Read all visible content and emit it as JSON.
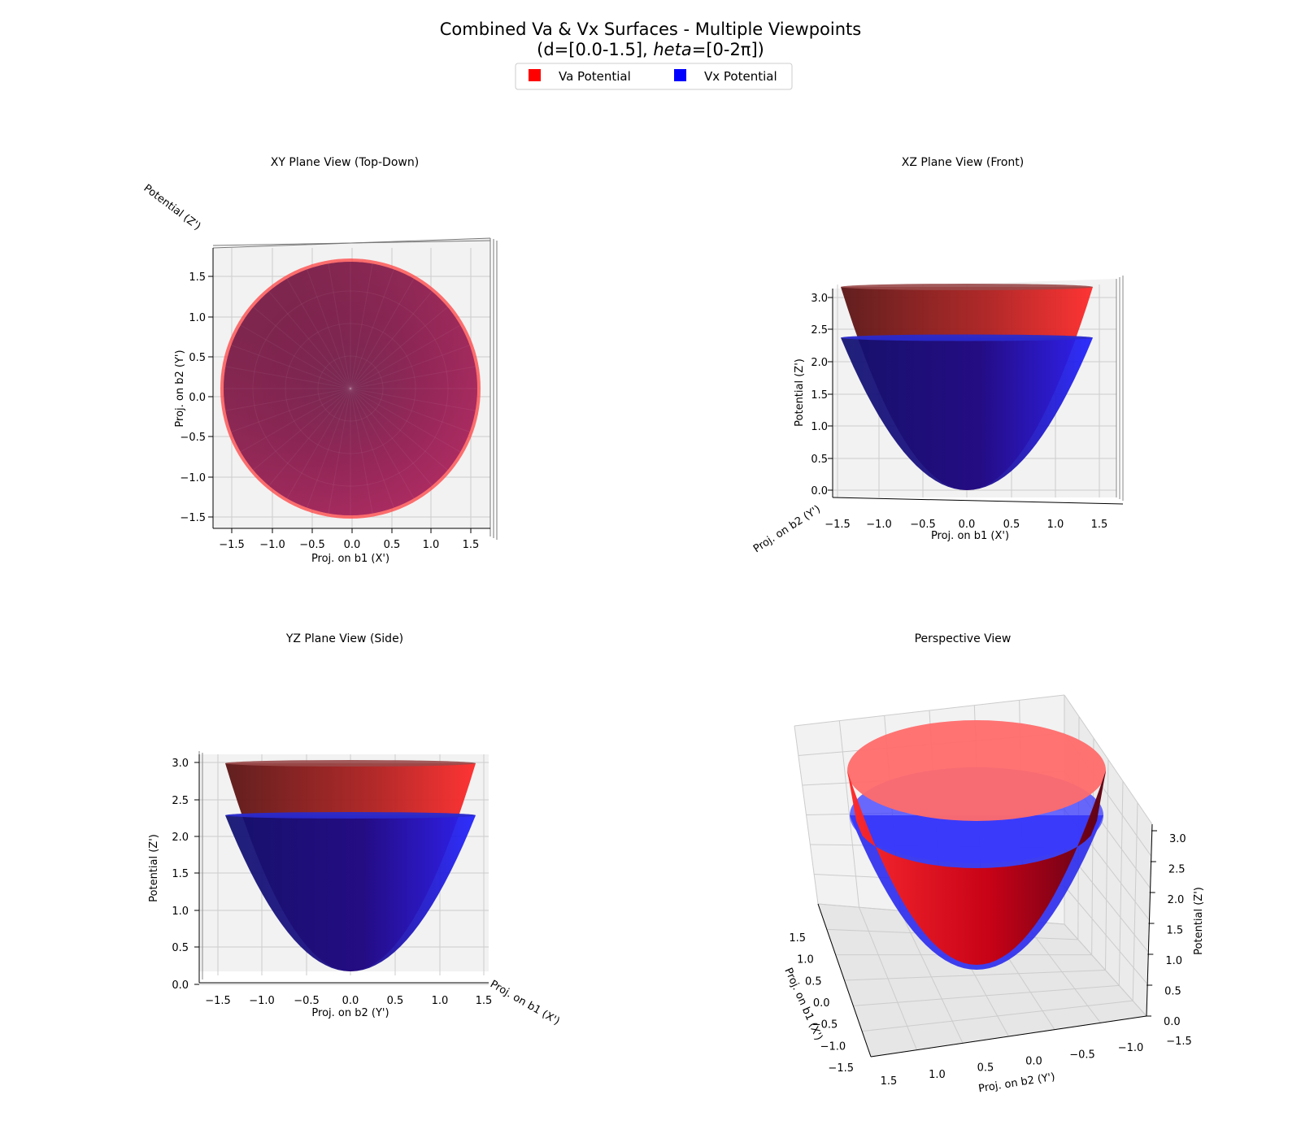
{
  "figure": {
    "title_line1": "Combined Va & Vx Surfaces - Multiple Viewpoints",
    "title_line2_prefix": "(d=[0.0-1.5], ",
    "title_line2_italic": "heta",
    "title_line2_suffix": "=[0-2π])"
  },
  "legend": {
    "placement": "top-center",
    "items": [
      {
        "label": "Va Potential",
        "color": "#ff0000"
      },
      {
        "label": "Vx Potential",
        "color": "#0000ff"
      }
    ]
  },
  "colors": {
    "va": "#ff0000",
    "vx": "#0000ff",
    "pane": "#f2f2f2",
    "grid": "#cccccc"
  },
  "chart_data": [
    {
      "type": "surface3d",
      "title": "XY Plane View (Top-Down)",
      "xlabel": "Proj. on b1 (X')",
      "ylabel": "Proj. on b2 (Y')",
      "zlabel": "Potential (Z')",
      "xticks": [
        "−1.5",
        "−1.0",
        "−0.5",
        "0.0",
        "0.5",
        "1.0",
        "1.5"
      ],
      "yticks": [
        "1.5",
        "1.0",
        "0.5",
        "0.0",
        "−0.5",
        "−1.0",
        "−1.5"
      ],
      "xlim": [
        -1.5,
        1.5
      ],
      "ylim": [
        -1.5,
        1.5
      ],
      "zlim": [
        0,
        3.0
      ],
      "grid": true
    },
    {
      "type": "surface3d",
      "title": "XZ Plane View (Front)",
      "xlabel": "Proj. on b1 (X')",
      "ylabel": "Potential (Z')",
      "zlabel": "Proj. on b2 (Y')",
      "xticks": [
        "−1.5",
        "−1.0",
        "−0.5",
        "0.0",
        "0.5",
        "1.0",
        "1.5"
      ],
      "yticks": [
        "3.0",
        "2.5",
        "2.0",
        "1.5",
        "1.0",
        "0.5",
        "0.0"
      ],
      "xlim": [
        -1.5,
        1.5
      ],
      "ylim": [
        0,
        3.0
      ],
      "grid": true
    },
    {
      "type": "surface3d",
      "title": "YZ Plane View (Side)",
      "xlabel": "Proj. on b2 (Y')",
      "ylabel": "Potential (Z')",
      "zlabel": "Proj. on b1 (X')",
      "xticks": [
        "−1.5",
        "−1.0",
        "−0.5",
        "0.0",
        "0.5",
        "1.0",
        "1.5"
      ],
      "yticks": [
        "3.0",
        "2.5",
        "2.0",
        "1.5",
        "1.0",
        "0.5",
        "0.0"
      ],
      "xlim": [
        -1.5,
        1.5
      ],
      "ylim": [
        0,
        3.0
      ],
      "grid": true
    },
    {
      "type": "surface3d",
      "title": "Perspective View",
      "xlabel": "Proj. on b1 (X')",
      "ylabel": "Proj. on b2 (Y')",
      "zlabel": "Potential (Z')",
      "xticks": [
        "1.5",
        "1.0",
        "0.5",
        "0.0",
        "−0.5",
        "−1.0",
        "−1.5"
      ],
      "yticks": [
        "1.5",
        "1.0",
        "0.5",
        "0.0",
        "−0.5",
        "−1.0",
        "−1.5"
      ],
      "zticks": [
        "3.0",
        "2.5",
        "2.0",
        "1.5",
        "1.0",
        "0.5",
        "0.0"
      ],
      "zlim": [
        0,
        3.0
      ],
      "grid": true
    }
  ],
  "surfaces": [
    {
      "name": "Va Potential",
      "d_range": [
        0.0,
        1.5
      ],
      "z_at_d0": 0.0,
      "z_at_dmax": 3.0
    },
    {
      "name": "Vx Potential",
      "d_range": [
        0.0,
        1.5
      ],
      "z_at_d0": 0.0,
      "z_at_dmax": 2.25
    }
  ]
}
